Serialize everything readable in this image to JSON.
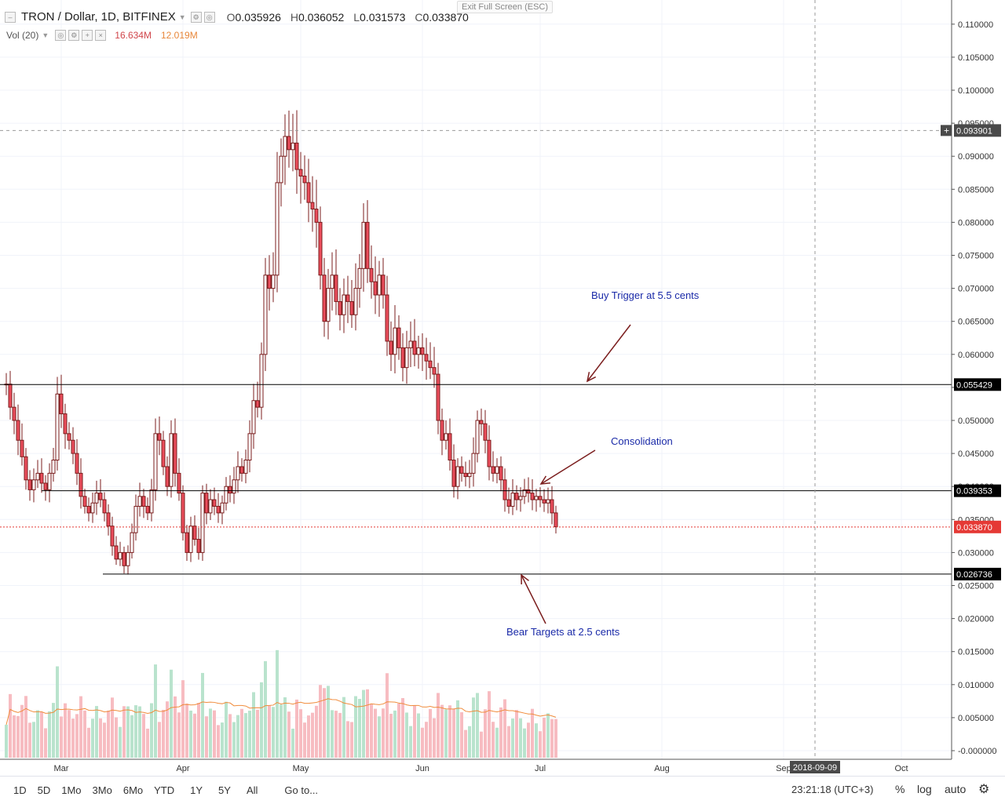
{
  "header": {
    "symbol": "TRON / Dollar, 1D, BITFINEX",
    "open_label": "O",
    "open": "0.035926",
    "high_label": "H",
    "high": "0.036052",
    "low_label": "L",
    "low": "0.031573",
    "close_label": "C",
    "close": "0.033870",
    "volume_label": "Vol (20)",
    "volume_value": "16.634M",
    "volume_ma_value": "12.019M",
    "exit_fullscreen": "Exit Full Screen (ESC)"
  },
  "price_axis": {
    "ticks": [
      "0.110000",
      "0.105000",
      "0.100000",
      "0.095000",
      "0.090000",
      "0.085000",
      "0.080000",
      "0.075000",
      "0.070000",
      "0.065000",
      "0.060000",
      "0.055000",
      "0.050000",
      "0.045000",
      "0.040000",
      "0.035000",
      "0.030000",
      "0.025000",
      "0.020000",
      "0.015000",
      "0.010000",
      "0.005000",
      "-0.000000"
    ],
    "crosshair_label": "0.093901",
    "level_labels": [
      "0.055429",
      "0.039353",
      "0.033870",
      "0.026736"
    ]
  },
  "time_axis": {
    "ticks": [
      "Mar",
      "Apr",
      "May",
      "Jun",
      "Jul",
      "Aug",
      "Sep",
      "Oct"
    ],
    "crosshair_label": "2018-09-09"
  },
  "annotations": {
    "buy_trigger": "Buy Trigger at 5.5 cents",
    "consolidation": "Consolidation",
    "bear_targets": "Bear Targets at 2.5 cents"
  },
  "bottom_bar": {
    "ranges": [
      "1D",
      "5D",
      "1Mo",
      "3Mo",
      "6Mo",
      "YTD",
      "1Y",
      "5Y",
      "All"
    ],
    "goto": "Go to...",
    "clock": "23:21:18 (UTC+3)",
    "percent": "%",
    "log": "log",
    "auto": "auto"
  },
  "colors": {
    "up": "#53b987",
    "down": "#eb4d5c",
    "candle_body_up": "#ffffff",
    "candle_border": "#7b1e1e",
    "vol_up": "#b9e3cd",
    "vol_down": "#f7bcc1",
    "ma": "#f08c3c",
    "annotation": "#1a2aa8",
    "arrow": "#7b1e1e",
    "current_price": "#e53935"
  },
  "chart_data": {
    "type": "candlestick",
    "title": "TRON / Dollar, 1D, BITFINEX",
    "x_unit": "date",
    "y_unit": "USD",
    "ylim": [
      -0.0005,
      0.1115
    ],
    "xlim": [
      "2018-02-15",
      "2018-10-29"
    ],
    "horizontal_levels": [
      0.055429,
      0.039353,
      0.026736
    ],
    "current_price": 0.03387,
    "crosshair": {
      "price": 0.093901,
      "date": "2018-09-09"
    },
    "candles": [
      {
        "date": "2018-02-15",
        "close": 0.0555
      },
      {
        "date": "2018-02-16",
        "close": 0.052
      },
      {
        "date": "2018-02-17",
        "close": 0.05
      },
      {
        "date": "2018-02-18",
        "close": 0.047
      },
      {
        "date": "2018-02-19",
        "close": 0.0445
      },
      {
        "date": "2018-02-20",
        "close": 0.041
      },
      {
        "date": "2018-02-21",
        "close": 0.0395
      },
      {
        "date": "2018-02-22",
        "close": 0.041
      },
      {
        "date": "2018-02-23",
        "close": 0.042
      },
      {
        "date": "2018-02-24",
        "close": 0.0405
      },
      {
        "date": "2018-02-25",
        "close": 0.0395
      },
      {
        "date": "2018-02-26",
        "close": 0.042
      },
      {
        "date": "2018-02-27",
        "close": 0.044
      },
      {
        "date": "2018-02-28",
        "close": 0.054
      },
      {
        "date": "2018-03-01",
        "close": 0.051
      },
      {
        "date": "2018-03-02",
        "close": 0.048
      },
      {
        "date": "2018-03-03",
        "close": 0.047
      },
      {
        "date": "2018-03-04",
        "close": 0.045
      },
      {
        "date": "2018-03-05",
        "close": 0.042
      },
      {
        "date": "2018-03-06",
        "close": 0.0385
      },
      {
        "date": "2018-03-07",
        "close": 0.037
      },
      {
        "date": "2018-03-08",
        "close": 0.036
      },
      {
        "date": "2018-03-09",
        "close": 0.0375
      },
      {
        "date": "2018-03-10",
        "close": 0.039
      },
      {
        "date": "2018-03-11",
        "close": 0.038
      },
      {
        "date": "2018-03-12",
        "close": 0.036
      },
      {
        "date": "2018-03-13",
        "close": 0.034
      },
      {
        "date": "2018-03-14",
        "close": 0.031
      },
      {
        "date": "2018-03-15",
        "close": 0.029
      },
      {
        "date": "2018-03-16",
        "close": 0.03
      },
      {
        "date": "2018-03-17",
        "close": 0.028
      },
      {
        "date": "2018-03-18",
        "close": 0.03
      },
      {
        "date": "2018-03-19",
        "close": 0.033
      },
      {
        "date": "2018-03-20",
        "close": 0.037
      },
      {
        "date": "2018-03-21",
        "close": 0.0385
      },
      {
        "date": "2018-03-22",
        "close": 0.037
      },
      {
        "date": "2018-03-23",
        "close": 0.036
      },
      {
        "date": "2018-03-24",
        "close": 0.0395
      },
      {
        "date": "2018-03-25",
        "close": 0.048
      },
      {
        "date": "2018-03-26",
        "close": 0.047
      },
      {
        "date": "2018-03-27",
        "close": 0.043
      },
      {
        "date": "2018-03-28",
        "close": 0.04
      },
      {
        "date": "2018-03-29",
        "close": 0.048
      },
      {
        "date": "2018-03-30",
        "close": 0.042
      },
      {
        "date": "2018-03-31",
        "close": 0.039
      },
      {
        "date": "2018-04-01",
        "close": 0.033
      },
      {
        "date": "2018-04-02",
        "close": 0.03
      },
      {
        "date": "2018-04-03",
        "close": 0.034
      },
      {
        "date": "2018-04-04",
        "close": 0.032
      },
      {
        "date": "2018-04-05",
        "close": 0.03
      },
      {
        "date": "2018-04-06",
        "close": 0.039
      },
      {
        "date": "2018-04-07",
        "close": 0.036
      },
      {
        "date": "2018-04-08",
        "close": 0.038
      },
      {
        "date": "2018-04-09",
        "close": 0.037
      },
      {
        "date": "2018-04-10",
        "close": 0.036
      },
      {
        "date": "2018-04-11",
        "close": 0.0375
      },
      {
        "date": "2018-04-12",
        "close": 0.04
      },
      {
        "date": "2018-04-13",
        "close": 0.039
      },
      {
        "date": "2018-04-14",
        "close": 0.041
      },
      {
        "date": "2018-04-15",
        "close": 0.043
      },
      {
        "date": "2018-04-16",
        "close": 0.042
      },
      {
        "date": "2018-04-17",
        "close": 0.044
      },
      {
        "date": "2018-04-18",
        "close": 0.048
      },
      {
        "date": "2018-04-19",
        "close": 0.053
      },
      {
        "date": "2018-04-20",
        "close": 0.052
      },
      {
        "date": "2018-04-21",
        "close": 0.06
      },
      {
        "date": "2018-04-22",
        "close": 0.072
      },
      {
        "date": "2018-04-23",
        "close": 0.07
      },
      {
        "date": "2018-04-24",
        "close": 0.072
      },
      {
        "date": "2018-04-25",
        "close": 0.086
      },
      {
        "date": "2018-04-26",
        "close": 0.09
      },
      {
        "date": "2018-04-27",
        "close": 0.093
      },
      {
        "date": "2018-04-28",
        "close": 0.091
      },
      {
        "date": "2018-04-29",
        "close": 0.092
      },
      {
        "date": "2018-04-30",
        "close": 0.088
      },
      {
        "date": "2018-05-01",
        "close": 0.087
      },
      {
        "date": "2018-05-02",
        "close": 0.086
      },
      {
        "date": "2018-05-03",
        "close": 0.083
      },
      {
        "date": "2018-05-04",
        "close": 0.082
      },
      {
        "date": "2018-05-05",
        "close": 0.08
      },
      {
        "date": "2018-05-06",
        "close": 0.072
      },
      {
        "date": "2018-05-07",
        "close": 0.065
      },
      {
        "date": "2018-05-08",
        "close": 0.07
      },
      {
        "date": "2018-05-09",
        "close": 0.072
      },
      {
        "date": "2018-05-10",
        "close": 0.068
      },
      {
        "date": "2018-05-11",
        "close": 0.066
      },
      {
        "date": "2018-05-12",
        "close": 0.069
      },
      {
        "date": "2018-05-13",
        "close": 0.068
      },
      {
        "date": "2018-05-14",
        "close": 0.066
      },
      {
        "date": "2018-05-15",
        "close": 0.07
      },
      {
        "date": "2018-05-16",
        "close": 0.073
      },
      {
        "date": "2018-05-17",
        "close": 0.08
      },
      {
        "date": "2018-05-18",
        "close": 0.073
      },
      {
        "date": "2018-05-19",
        "close": 0.071
      },
      {
        "date": "2018-05-20",
        "close": 0.069
      },
      {
        "date": "2018-05-21",
        "close": 0.072
      },
      {
        "date": "2018-05-22",
        "close": 0.069
      },
      {
        "date": "2018-05-23",
        "close": 0.062
      },
      {
        "date": "2018-05-24",
        "close": 0.06
      },
      {
        "date": "2018-05-25",
        "close": 0.064
      },
      {
        "date": "2018-05-26",
        "close": 0.061
      },
      {
        "date": "2018-05-27",
        "close": 0.058
      },
      {
        "date": "2018-05-28",
        "close": 0.061
      },
      {
        "date": "2018-05-29",
        "close": 0.062
      },
      {
        "date": "2018-05-30",
        "close": 0.06
      },
      {
        "date": "2018-05-31",
        "close": 0.061
      },
      {
        "date": "2018-06-01",
        "close": 0.06
      },
      {
        "date": "2018-06-02",
        "close": 0.059
      },
      {
        "date": "2018-06-03",
        "close": 0.058
      },
      {
        "date": "2018-06-04",
        "close": 0.057
      },
      {
        "date": "2018-06-05",
        "close": 0.05
      },
      {
        "date": "2018-06-06",
        "close": 0.047
      },
      {
        "date": "2018-06-07",
        "close": 0.048
      },
      {
        "date": "2018-06-08",
        "close": 0.044
      },
      {
        "date": "2018-06-09",
        "close": 0.04
      },
      {
        "date": "2018-06-10",
        "close": 0.043
      },
      {
        "date": "2018-06-11",
        "close": 0.042
      },
      {
        "date": "2018-06-12",
        "close": 0.0415
      },
      {
        "date": "2018-06-13",
        "close": 0.042
      },
      {
        "date": "2018-06-14",
        "close": 0.045
      },
      {
        "date": "2018-06-15",
        "close": 0.05
      },
      {
        "date": "2018-06-16",
        "close": 0.0495
      },
      {
        "date": "2018-06-17",
        "close": 0.047
      },
      {
        "date": "2018-06-18",
        "close": 0.043
      },
      {
        "date": "2018-06-19",
        "close": 0.042
      },
      {
        "date": "2018-06-20",
        "close": 0.043
      },
      {
        "date": "2018-06-21",
        "close": 0.041
      },
      {
        "date": "2018-06-22",
        "close": 0.038
      },
      {
        "date": "2018-06-23",
        "close": 0.037
      },
      {
        "date": "2018-06-24",
        "close": 0.039
      },
      {
        "date": "2018-06-25",
        "close": 0.038
      },
      {
        "date": "2018-06-26",
        "close": 0.0385
      },
      {
        "date": "2018-06-27",
        "close": 0.0395
      },
      {
        "date": "2018-06-28",
        "close": 0.039
      },
      {
        "date": "2018-06-29",
        "close": 0.038
      },
      {
        "date": "2018-06-30",
        "close": 0.0385
      },
      {
        "date": "2018-07-01",
        "close": 0.038
      },
      {
        "date": "2018-07-02",
        "close": 0.0375
      },
      {
        "date": "2018-07-03",
        "close": 0.038
      },
      {
        "date": "2018-07-04",
        "close": 0.036
      },
      {
        "date": "2018-07-05",
        "close": 0.0339
      }
    ],
    "volume": {
      "label": "Vol (20)",
      "last": "16.634M",
      "ma_last": "12.019M"
    }
  }
}
